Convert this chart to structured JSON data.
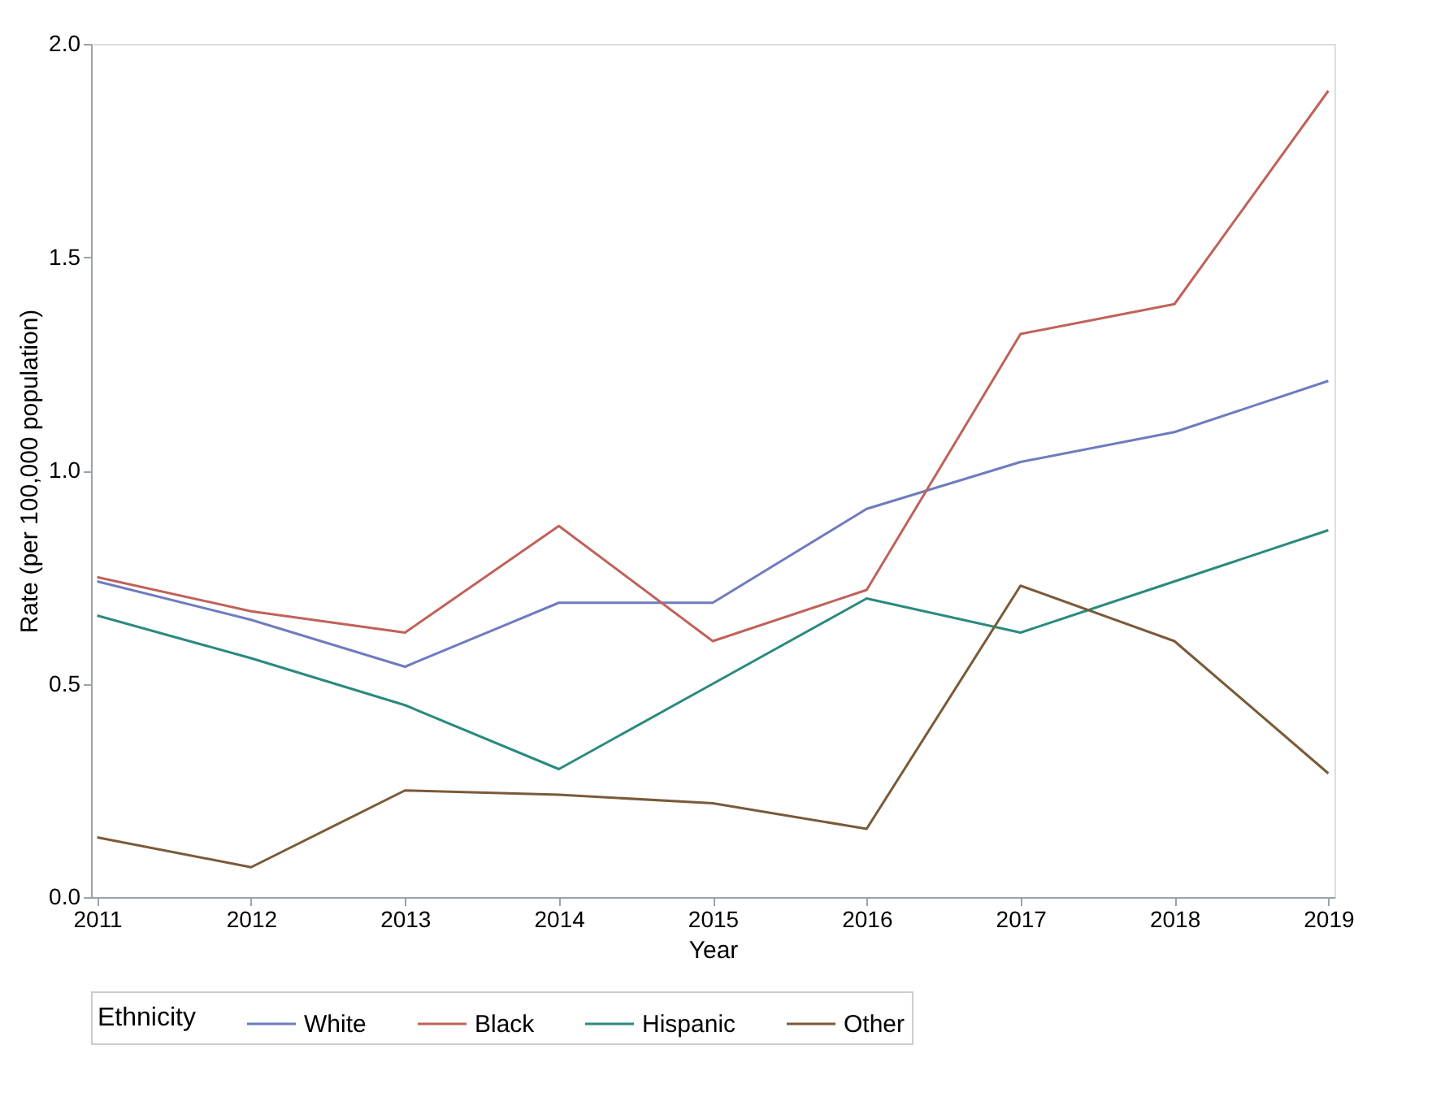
{
  "chart_data": {
    "type": "line",
    "xlabel": "Year",
    "ylabel": "Rate (per 100,000 population)",
    "legend_title": "Ethnicity",
    "x": [
      2011,
      2012,
      2013,
      2014,
      2015,
      2016,
      2017,
      2018,
      2019
    ],
    "series": [
      {
        "name": "White",
        "color": "#6f7bbf",
        "values": [
          0.74,
          0.65,
          0.54,
          0.69,
          0.69,
          0.91,
          1.02,
          1.09,
          1.21
        ]
      },
      {
        "name": "Black",
        "color": "#c0625a",
        "values": [
          0.75,
          0.67,
          0.62,
          0.87,
          0.6,
          0.72,
          1.32,
          1.39,
          1.89
        ]
      },
      {
        "name": "Hispanic",
        "color": "#2a8a7e",
        "values": [
          0.66,
          0.56,
          0.45,
          0.3,
          0.5,
          0.7,
          0.62,
          0.74,
          0.86
        ]
      },
      {
        "name": "Other",
        "color": "#7a5a3a",
        "values": [
          0.14,
          0.07,
          0.25,
          0.24,
          0.22,
          0.16,
          0.73,
          0.6,
          0.29
        ]
      }
    ],
    "xlim": [
      2010.96,
      2019.04
    ],
    "xticks": [
      2011,
      2012,
      2013,
      2014,
      2015,
      2016,
      2017,
      2018,
      2019
    ],
    "ylim": [
      0,
      2
    ],
    "yticks": [
      {
        "value": 0,
        "label": "0.0"
      },
      {
        "value": 0.5,
        "label": "0.5"
      },
      {
        "value": 1,
        "label": "1.0"
      },
      {
        "value": 1.5,
        "label": "1.5"
      },
      {
        "value": 2,
        "label": "2.0"
      }
    ],
    "grid": false,
    "legend": "bottom",
    "marker": "none",
    "line_style": "solid"
  }
}
